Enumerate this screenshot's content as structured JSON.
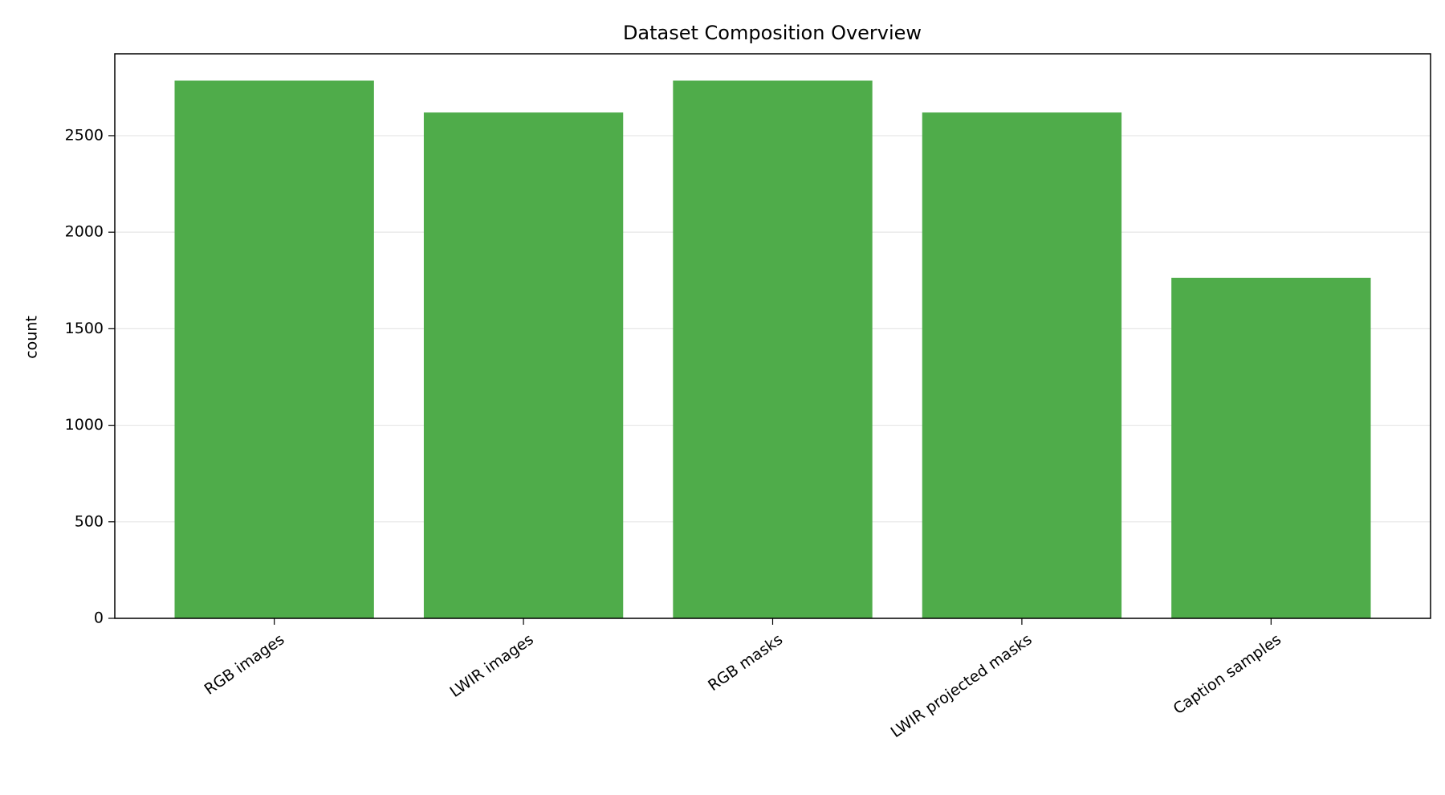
{
  "chart_data": {
    "type": "bar",
    "title": "Dataset Composition Overview",
    "y_label": "count",
    "categories": [
      "RGB images",
      "LWIR images",
      "RGB masks",
      "LWIR projected masks",
      "Caption samples"
    ],
    "values": [
      2785,
      2620,
      2785,
      2620,
      1764
    ],
    "color": "#4fac4a",
    "ylim": [
      0,
      2924
    ],
    "yticks": [
      0,
      500,
      1000,
      1500,
      2000,
      2500
    ],
    "grid": true
  }
}
